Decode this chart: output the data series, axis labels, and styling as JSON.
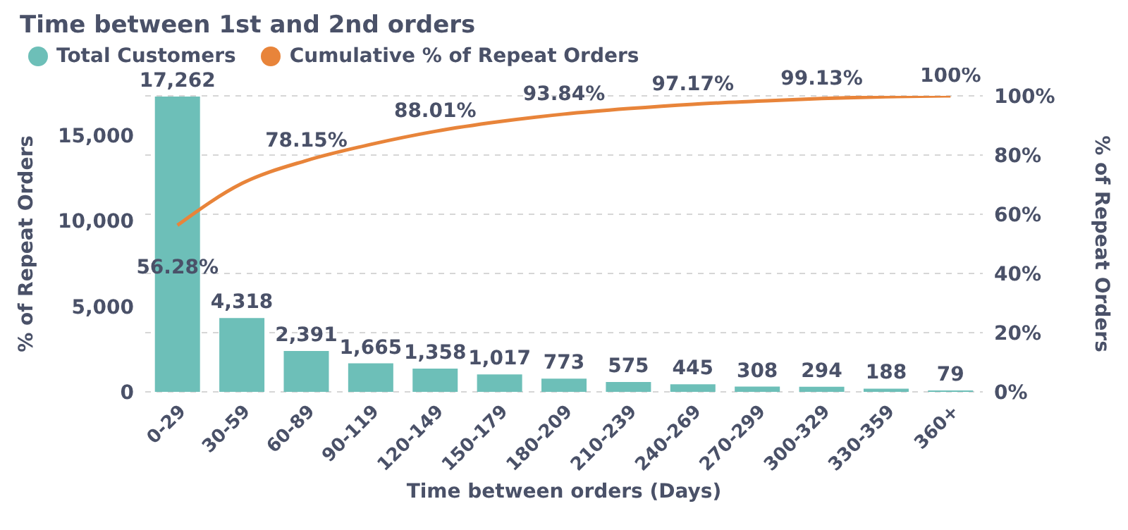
{
  "chart_data": {
    "type": "bar",
    "title": "Time between 1st and 2nd orders",
    "xlabel": "Time between orders (Days)",
    "ylabel": "% of Repeat Orders",
    "y2label": "% of Repeat Orders",
    "categories": [
      "0-29",
      "30-59",
      "60-89",
      "90-119",
      "120-149",
      "150-179",
      "180-209",
      "210-239",
      "240-269",
      "270-299",
      "300-329",
      "330-359",
      "360+"
    ],
    "series": [
      {
        "name": "Total Customers",
        "color": "#6dbfb8",
        "values": [
          17262,
          4318,
          2391,
          1665,
          1358,
          1017,
          773,
          575,
          445,
          308,
          294,
          188,
          79
        ],
        "value_labels": [
          "17,262",
          "4,318",
          "2,391",
          "1,665",
          "1,358",
          "1,017",
          "773",
          "575",
          "445",
          "308",
          "294",
          "188",
          "79"
        ]
      },
      {
        "name": "Cumulative % of Repeat Orders",
        "type": "line",
        "axis": "y2",
        "color": "#e8843a",
        "values": [
          56.28,
          70.4,
          78.15,
          83.6,
          88.01,
          91.3,
          93.84,
          95.7,
          97.17,
          98.2,
          99.13,
          99.7,
          100
        ],
        "value_labels": [
          "56.28%",
          null,
          "78.15%",
          null,
          "88.01%",
          null,
          "93.84%",
          null,
          "97.17%",
          null,
          "99.13%",
          null,
          "100%"
        ]
      }
    ],
    "ylim": [
      0,
      17300
    ],
    "yticks": [
      {
        "value": 0,
        "label": "0"
      },
      {
        "value": 5000,
        "label": "5,000"
      },
      {
        "value": 10000,
        "label": "10,000"
      },
      {
        "value": 15000,
        "label": "15,000"
      }
    ],
    "y2lim": [
      0,
      100
    ],
    "y2ticks": [
      {
        "value": 0,
        "label": "0%"
      },
      {
        "value": 20,
        "label": "20%"
      },
      {
        "value": 40,
        "label": "40%"
      },
      {
        "value": 60,
        "label": "60%"
      },
      {
        "value": 80,
        "label": "80%"
      },
      {
        "value": 100,
        "label": "100%"
      }
    ],
    "grid": "y",
    "legend": "top left",
    "marker": "none"
  }
}
